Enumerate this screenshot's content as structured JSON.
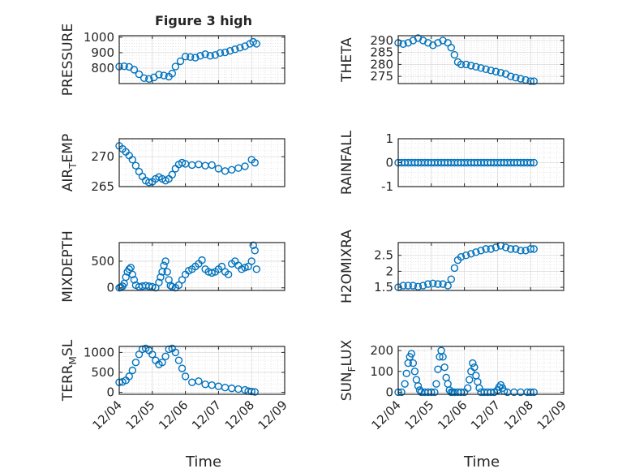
{
  "figure_title": "Figure 3 high",
  "x_label": "Time",
  "x_ticks": [
    "12/04",
    "12/05",
    "12/06",
    "12/07",
    "12/08",
    "12/09"
  ],
  "marker_color": "#0072BD",
  "chart_data": [
    {
      "type": "scatter",
      "ylabel": "PRESSURE",
      "ylim": [
        700,
        1010
      ],
      "yticks": [
        800,
        900,
        1000
      ],
      "ytick_labels": [
        "800",
        "900",
        "1000"
      ],
      "xlim": [
        "12/04",
        "12/09"
      ],
      "grid": true,
      "x": [
        4.0,
        4.15,
        4.3,
        4.45,
        4.6,
        4.75,
        4.9,
        5.05,
        5.2,
        5.35,
        5.5,
        5.6,
        5.7,
        5.85,
        6.0,
        6.15,
        6.3,
        6.45,
        6.6,
        6.75,
        6.9,
        7.05,
        7.2,
        7.35,
        7.5,
        7.65,
        7.8,
        7.95,
        8.05,
        8.15
      ],
      "values": [
        810,
        812,
        808,
        790,
        760,
        735,
        730,
        740,
        758,
        752,
        745,
        765,
        810,
        845,
        875,
        872,
        868,
        880,
        890,
        880,
        885,
        898,
        902,
        912,
        922,
        932,
        942,
        958,
        970,
        958
      ]
    },
    {
      "type": "scatter",
      "ylabel": "THETA",
      "ylim": [
        272,
        292
      ],
      "yticks": [
        275,
        280,
        285,
        290
      ],
      "ytick_labels": [
        "275",
        "280",
        "285",
        "290"
      ],
      "xlim": [
        "12/04",
        "12/09"
      ],
      "grid": true,
      "x": [
        4.0,
        4.15,
        4.3,
        4.45,
        4.6,
        4.75,
        4.9,
        5.05,
        5.2,
        5.35,
        5.5,
        5.6,
        5.7,
        5.8,
        5.9,
        6.05,
        6.2,
        6.35,
        6.5,
        6.65,
        6.8,
        6.95,
        7.1,
        7.25,
        7.4,
        7.55,
        7.7,
        7.85,
        8.0,
        8.1
      ],
      "values": [
        289,
        288.5,
        289,
        290,
        291,
        290,
        289,
        288,
        289,
        290,
        289,
        287,
        284,
        281,
        280,
        280,
        279.5,
        279,
        278.5,
        278,
        277.5,
        277,
        276.5,
        276,
        275,
        274.5,
        274,
        273.5,
        273,
        273
      ]
    },
    {
      "type": "scatter",
      "ylabel": "AIR_TEMP",
      "ylim": [
        265,
        273
      ],
      "yticks": [
        265,
        270
      ],
      "ytick_labels": [
        "265",
        "270"
      ],
      "xlim": [
        "12/04",
        "12/09"
      ],
      "grid": true,
      "x": [
        4.0,
        4.1,
        4.2,
        4.3,
        4.4,
        4.5,
        4.6,
        4.7,
        4.8,
        4.9,
        5.0,
        5.1,
        5.2,
        5.3,
        5.4,
        5.5,
        5.6,
        5.7,
        5.8,
        5.9,
        6.0,
        6.2,
        6.4,
        6.6,
        6.8,
        7.0,
        7.2,
        7.4,
        7.6,
        7.8,
        8.0,
        8.1
      ],
      "values": [
        271.8,
        271.3,
        270.8,
        270.2,
        269.5,
        268.5,
        267.5,
        266.7,
        266.0,
        265.7,
        265.8,
        266.3,
        266.6,
        266.3,
        266.0,
        266.3,
        267.0,
        268.0,
        268.7,
        269.0,
        268.8,
        268.6,
        268.7,
        268.5,
        268.6,
        268.0,
        267.6,
        267.8,
        268.1,
        268.4,
        269.5,
        269.0
      ]
    },
    {
      "type": "scatter",
      "ylabel": "RAINFALL",
      "ylim": [
        -1,
        1
      ],
      "yticks": [
        -1,
        0,
        1
      ],
      "ytick_labels": [
        "-1",
        "0",
        "1"
      ],
      "xlim": [
        "12/04",
        "12/09"
      ],
      "grid": true,
      "x": [
        4.0,
        4.1,
        4.2,
        4.3,
        4.4,
        4.5,
        4.6,
        4.7,
        4.8,
        4.9,
        5.0,
        5.1,
        5.2,
        5.3,
        5.4,
        5.5,
        5.6,
        5.7,
        5.8,
        5.9,
        6.0,
        6.1,
        6.2,
        6.3,
        6.4,
        6.5,
        6.6,
        6.7,
        6.8,
        6.9,
        7.0,
        7.1,
        7.2,
        7.3,
        7.4,
        7.5,
        7.6,
        7.7,
        7.8,
        7.9,
        8.0,
        8.1
      ],
      "values": [
        0,
        0,
        0,
        0,
        0,
        0,
        0,
        0,
        0,
        0,
        0,
        0,
        0,
        0,
        0,
        0,
        0,
        0,
        0,
        0,
        0,
        0,
        0,
        0,
        0,
        0,
        0,
        0,
        0,
        0,
        0,
        0,
        0,
        0,
        0,
        0,
        0,
        0,
        0,
        0,
        0,
        0
      ]
    },
    {
      "type": "scatter",
      "ylabel": "MIXDEPTH",
      "ylim": [
        -50,
        850
      ],
      "yticks": [
        0,
        500
      ],
      "ytick_labels": [
        "0",
        "500"
      ],
      "xlim": [
        "12/04",
        "12/09"
      ],
      "grid": true,
      "x": [
        4.0,
        4.05,
        4.1,
        4.15,
        4.2,
        4.25,
        4.3,
        4.35,
        4.4,
        4.45,
        4.5,
        4.6,
        4.7,
        4.8,
        4.9,
        5.0,
        5.1,
        5.2,
        5.25,
        5.3,
        5.35,
        5.4,
        5.45,
        5.5,
        5.55,
        5.6,
        5.7,
        5.8,
        5.9,
        6.0,
        6.1,
        6.2,
        6.3,
        6.4,
        6.5,
        6.6,
        6.7,
        6.8,
        6.9,
        7.0,
        7.1,
        7.2,
        7.3,
        7.4,
        7.5,
        7.6,
        7.7,
        7.8,
        7.9,
        8.0,
        8.05,
        8.1,
        8.15
      ],
      "values": [
        0,
        10,
        30,
        80,
        200,
        300,
        350,
        380,
        250,
        150,
        50,
        20,
        30,
        40,
        30,
        20,
        0,
        100,
        200,
        300,
        420,
        500,
        300,
        150,
        40,
        20,
        0,
        50,
        150,
        250,
        320,
        350,
        400,
        450,
        520,
        350,
        300,
        280,
        300,
        350,
        400,
        300,
        250,
        450,
        500,
        420,
        350,
        380,
        400,
        500,
        800,
        700,
        350
      ]
    },
    {
      "type": "scatter",
      "ylabel": "H2OMIXRA",
      "ylim": [
        1.4,
        2.9
      ],
      "yticks": [
        1.5,
        2,
        2.5
      ],
      "ytick_labels": [
        "1.5",
        "2",
        "2.5"
      ],
      "xlim": [
        "12/04",
        "12/09"
      ],
      "grid": true,
      "x": [
        4.0,
        4.15,
        4.3,
        4.45,
        4.6,
        4.75,
        4.9,
        5.05,
        5.2,
        5.35,
        5.5,
        5.6,
        5.7,
        5.8,
        5.9,
        6.05,
        6.2,
        6.35,
        6.5,
        6.65,
        6.8,
        6.95,
        7.1,
        7.25,
        7.4,
        7.55,
        7.7,
        7.85,
        8.0,
        8.1
      ],
      "values": [
        1.5,
        1.55,
        1.55,
        1.55,
        1.52,
        1.55,
        1.6,
        1.62,
        1.6,
        1.6,
        1.55,
        1.75,
        2.1,
        2.35,
        2.45,
        2.5,
        2.55,
        2.6,
        2.65,
        2.7,
        2.7,
        2.75,
        2.8,
        2.75,
        2.7,
        2.7,
        2.65,
        2.65,
        2.7,
        2.7
      ]
    },
    {
      "type": "scatter",
      "ylabel": "TERR_MSL",
      "ylim": [
        -50,
        1150
      ],
      "yticks": [
        0,
        500,
        1000
      ],
      "ytick_labels": [
        "0",
        "500",
        "1000"
      ],
      "xlim": [
        "12/04",
        "12/09"
      ],
      "grid": true,
      "x": [
        4.0,
        4.1,
        4.2,
        4.3,
        4.4,
        4.5,
        4.6,
        4.7,
        4.8,
        4.9,
        5.0,
        5.1,
        5.2,
        5.3,
        5.4,
        5.5,
        5.6,
        5.7,
        5.8,
        5.9,
        6.0,
        6.2,
        6.4,
        6.6,
        6.8,
        7.0,
        7.2,
        7.4,
        7.6,
        7.8,
        7.9,
        8.0,
        8.1
      ],
      "values": [
        250,
        260,
        300,
        400,
        550,
        750,
        950,
        1080,
        1100,
        1050,
        950,
        800,
        700,
        750,
        900,
        1080,
        1100,
        1000,
        800,
        600,
        400,
        250,
        280,
        200,
        180,
        150,
        120,
        100,
        80,
        60,
        30,
        20,
        10
      ]
    },
    {
      "type": "scatter",
      "ylabel": "SUN_FLUX",
      "ylim": [
        -10,
        220
      ],
      "yticks": [
        0,
        100,
        200
      ],
      "ytick_labels": [
        "0",
        "100",
        "200"
      ],
      "xlim": [
        "12/04",
        "12/09"
      ],
      "grid": true,
      "x": [
        4.0,
        4.1,
        4.2,
        4.25,
        4.3,
        4.35,
        4.4,
        4.45,
        4.5,
        4.55,
        4.6,
        4.65,
        4.7,
        4.8,
        4.9,
        5.0,
        5.1,
        5.15,
        5.2,
        5.25,
        5.3,
        5.35,
        5.4,
        5.45,
        5.5,
        5.55,
        5.6,
        5.65,
        5.7,
        5.8,
        5.9,
        6.0,
        6.1,
        6.15,
        6.2,
        6.25,
        6.3,
        6.35,
        6.4,
        6.45,
        6.5,
        6.6,
        6.7,
        6.8,
        6.9,
        7.0,
        7.05,
        7.1,
        7.15,
        7.2,
        7.3,
        7.5,
        7.7,
        7.9,
        8.0,
        8.1
      ],
      "values": [
        0,
        0,
        40,
        90,
        140,
        170,
        185,
        140,
        100,
        60,
        30,
        10,
        0,
        0,
        0,
        0,
        0,
        40,
        110,
        170,
        200,
        170,
        120,
        70,
        40,
        10,
        0,
        0,
        0,
        0,
        0,
        0,
        20,
        60,
        100,
        140,
        120,
        80,
        50,
        20,
        0,
        0,
        0,
        0,
        0,
        10,
        25,
        35,
        20,
        5,
        0,
        0,
        0,
        0,
        0,
        0
      ]
    }
  ]
}
